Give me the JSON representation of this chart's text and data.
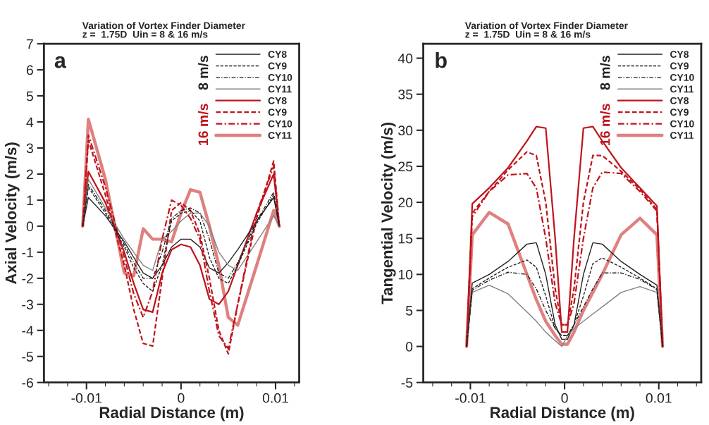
{
  "chart_data": [
    {
      "type": "line",
      "title": "Variation of Vortex Finder Diameter\nz =  1.75D  Uin = 8 & 16 m/s",
      "xlabel": "Radial Distance (m)",
      "ylabel": "Axial Velocity (m/s)",
      "xlim": [
        -0.0145,
        0.0125
      ],
      "ylim": [
        -6,
        7
      ],
      "xticks": [
        {
          "value": -0.014,
          "label": null
        },
        {
          "value": -0.012,
          "label": null
        },
        {
          "value": -0.01,
          "label": "-0.01"
        },
        {
          "value": -0.008,
          "label": null
        },
        {
          "value": -0.006,
          "label": null
        },
        {
          "value": -0.004,
          "label": null
        },
        {
          "value": -0.002,
          "label": null
        },
        0,
        {
          "value": 0.002,
          "label": null
        },
        {
          "value": 0.004,
          "label": null
        },
        {
          "value": 0.006,
          "label": null
        },
        {
          "value": 0.008,
          "label": null
        },
        {
          "value": 0.01,
          "label": "0.01"
        },
        {
          "value": 0.012,
          "label": null
        }
      ],
      "yticks": [
        -6,
        -5,
        -4,
        -3,
        -2,
        -1,
        0,
        1,
        2,
        3,
        4,
        5,
        6,
        7
      ],
      "legend": "top right",
      "annotations": [
        "a",
        "8 m/s",
        "16 m/s"
      ],
      "x": [
        -0.0104,
        -0.0098,
        -0.008,
        -0.006,
        -0.005,
        -0.004,
        -0.003,
        -0.002,
        -0.001,
        0,
        0.001,
        0.002,
        0.003,
        0.004,
        0.005,
        0.006,
        0.008,
        0.0098,
        0.0104
      ],
      "series": [
        {
          "name": "CY8",
          "color": "#222222",
          "line_style": "solid",
          "values": [
            0,
            1.1,
            0.4,
            -0.6,
            -1.2,
            -1.8,
            -2.0,
            -1.5,
            -0.8,
            -0.5,
            -0.5,
            -0.8,
            -1.6,
            -1.8,
            -1.4,
            -0.9,
            0.2,
            1.1,
            0
          ]
        },
        {
          "name": "CY9",
          "color": "#222222",
          "line_style": "dashed",
          "values": [
            0,
            1.5,
            0.5,
            -0.8,
            -1.6,
            -2.2,
            -2.5,
            -1.5,
            0.2,
            0.5,
            0.6,
            0.2,
            -1.2,
            -2.0,
            -2.2,
            -1.5,
            0.1,
            1.2,
            0
          ]
        },
        {
          "name": "CY10",
          "color": "#222222",
          "line_style": "dashdot",
          "values": [
            0,
            1.6,
            0.6,
            -0.7,
            -1.4,
            -2.0,
            -2.0,
            -1.0,
            0.3,
            0.6,
            0.7,
            0.5,
            -0.5,
            -1.8,
            -2.0,
            -1.4,
            0.2,
            1.3,
            0
          ]
        },
        {
          "name": "CY11",
          "color": "#808080",
          "line_style": "solid",
          "values": [
            0,
            1.8,
            0.7,
            -0.5,
            -1.0,
            -1.5,
            -1.7,
            -0.5,
            -0.2,
            0.2,
            0.5,
            0.5,
            0.0,
            -1.0,
            -1.5,
            -1.7,
            -0.6,
            0.4,
            0
          ]
        },
        {
          "name": "CY8",
          "color": "#c0141c",
          "line_style": "solid",
          "values": [
            0,
            2.1,
            0.9,
            -1.0,
            -2.2,
            -3.2,
            -3.3,
            -1.8,
            -0.9,
            -0.7,
            -0.8,
            -1.5,
            -2.8,
            -3.0,
            -2.5,
            -1.5,
            0.5,
            2.0,
            0
          ]
        },
        {
          "name": "CY9",
          "color": "#c0141c",
          "line_style": "dashed",
          "values": [
            0,
            3.3,
            1.2,
            -1.5,
            -3.2,
            -4.5,
            -4.6,
            -2.0,
            0.6,
            0.9,
            0.6,
            -0.3,
            -2.0,
            -4.0,
            -4.9,
            -3.0,
            0.3,
            2.5,
            0
          ]
        },
        {
          "name": "CY10",
          "color": "#c0141c",
          "line_style": "dashdot",
          "values": [
            0,
            3.5,
            1.5,
            -1.2,
            -2.6,
            -3.5,
            -2.5,
            -0.5,
            1.0,
            0.8,
            0.3,
            -0.5,
            -2.5,
            -4.2,
            -4.7,
            -3.0,
            0.5,
            2.3,
            0
          ]
        },
        {
          "name": "CY11",
          "color": "#e08080",
          "line_style": "solid",
          "values": [
            0,
            4.1,
            1.8,
            -1.8,
            -1.9,
            -0.1,
            -0.5,
            -0.5,
            -0.6,
            0.5,
            1.4,
            1.3,
            0.0,
            -1.5,
            -3.5,
            -3.8,
            -1.5,
            0.6,
            0
          ]
        }
      ]
    },
    {
      "type": "line",
      "title": "Variation of Vortex Finder Diameter\nz =  1.75D  Uin = 8 & 16 m/s",
      "xlabel": "Radial Distance (m)",
      "ylabel": "Tangential Velocity (m/s)",
      "xlim": [
        -0.015,
        0.0145
      ],
      "ylim": [
        -5,
        42
      ],
      "xticks": [
        {
          "value": -0.014,
          "label": null
        },
        {
          "value": -0.012,
          "label": null
        },
        {
          "value": -0.01,
          "label": "-0.01"
        },
        {
          "value": -0.008,
          "label": null
        },
        {
          "value": -0.006,
          "label": null
        },
        {
          "value": -0.004,
          "label": null
        },
        {
          "value": -0.002,
          "label": null
        },
        0,
        {
          "value": 0.002,
          "label": null
        },
        {
          "value": 0.004,
          "label": null
        },
        {
          "value": 0.006,
          "label": null
        },
        {
          "value": 0.008,
          "label": null
        },
        {
          "value": 0.01,
          "label": "0.01"
        },
        {
          "value": 0.012,
          "label": null
        },
        {
          "value": 0.014,
          "label": null
        }
      ],
      "yticks": [
        -5,
        0,
        5,
        10,
        15,
        20,
        25,
        30,
        35,
        40
      ],
      "legend": "top right",
      "annotations": [
        "b",
        "8 m/s",
        "16 m/s"
      ],
      "x": [
        -0.0104,
        -0.0098,
        -0.008,
        -0.006,
        -0.004,
        -0.003,
        -0.002,
        -0.001,
        -0.0003,
        0.0003,
        0.001,
        0.002,
        0.003,
        0.004,
        0.006,
        0.008,
        0.0098,
        0.0104
      ],
      "series": [
        {
          "name": "CY8",
          "color": "#222222",
          "line_style": "solid",
          "values": [
            0,
            8.8,
            10,
            11.8,
            14.2,
            14.4,
            10,
            3,
            1,
            1,
            3,
            10,
            14.4,
            14.2,
            11.8,
            10,
            8.5,
            0
          ]
        },
        {
          "name": "CY9",
          "color": "#222222",
          "line_style": "dashed",
          "values": [
            0,
            8,
            9.5,
            11,
            12,
            11,
            7,
            2.5,
            1.5,
            1.5,
            3,
            7,
            11.5,
            12.3,
            11,
            9.5,
            8,
            0
          ]
        },
        {
          "name": "CY10",
          "color": "#222222",
          "line_style": "dashdot",
          "values": [
            0,
            7.8,
            9.2,
            10.3,
            10,
            8,
            5,
            2.5,
            1.5,
            1.5,
            3,
            5.5,
            8,
            10.2,
            10.2,
            9.3,
            7.9,
            0
          ]
        },
        {
          "name": "CY11",
          "color": "#808080",
          "line_style": "solid",
          "values": [
            0,
            7.5,
            8.5,
            7.3,
            4.8,
            3.5,
            2,
            0.8,
            0,
            1.5,
            2.5,
            3.5,
            4.5,
            5.5,
            7.5,
            8.3,
            7.5,
            0
          ]
        },
        {
          "name": "CY8",
          "color": "#c0141c",
          "line_style": "solid",
          "values": [
            0,
            19.8,
            22,
            24.8,
            28.5,
            30.5,
            30.3,
            15,
            2,
            2,
            15,
            30.3,
            30.5,
            28.5,
            24.8,
            22,
            19.5,
            0
          ]
        },
        {
          "name": "CY9",
          "color": "#c0141c",
          "line_style": "dashed",
          "values": [
            0,
            18.5,
            21.5,
            24.5,
            27,
            26.5,
            20,
            8,
            3,
            3,
            8,
            20,
            26.5,
            26.5,
            24.3,
            21.8,
            19,
            0
          ]
        },
        {
          "name": "CY10",
          "color": "#c0141c",
          "line_style": "dashdot",
          "values": [
            0,
            18,
            21.5,
            23.8,
            24,
            22,
            15,
            6,
            3,
            3,
            6,
            15,
            22,
            24.2,
            24,
            21.5,
            18.8,
            0
          ]
        },
        {
          "name": "CY11",
          "color": "#e08080",
          "line_style": "solid",
          "values": [
            0,
            15.5,
            18.6,
            17,
            10,
            6.5,
            3.5,
            1.5,
            0.3,
            0.3,
            2,
            5,
            7.5,
            10,
            15.5,
            17.8,
            15.5,
            0
          ]
        }
      ]
    }
  ]
}
